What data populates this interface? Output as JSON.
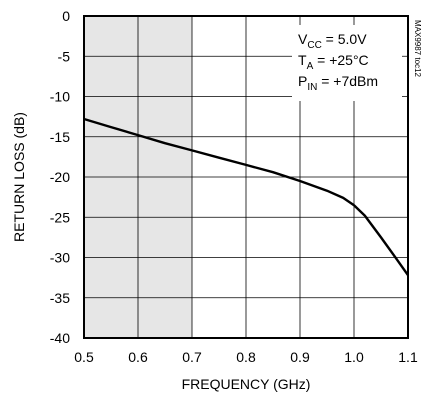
{
  "chart_data": {
    "type": "line",
    "title": "",
    "xlabel": "FREQUENCY (GHz)",
    "ylabel": "RETURN LOSS (dB)",
    "xlim": [
      0.5,
      1.1
    ],
    "ylim": [
      -40,
      0
    ],
    "x_ticks": [
      0.5,
      0.6,
      0.7,
      0.8,
      0.9,
      1.0,
      1.1
    ],
    "x_tick_labels": [
      "0.5",
      "0.6",
      "0.7",
      "0.8",
      "0.9",
      "1.0",
      "1.1"
    ],
    "y_ticks": [
      0,
      -5,
      -10,
      -15,
      -20,
      -25,
      -30,
      -35,
      -40
    ],
    "y_tick_labels": [
      "0",
      "-5",
      "-10",
      "-15",
      "-20",
      "-25",
      "-30",
      "-35",
      "-40"
    ],
    "grid": true,
    "shaded_region": {
      "x_from": 0.5,
      "x_to": 0.7,
      "color": "#e6e6e6"
    },
    "series": [
      {
        "color": "#000000",
        "x": [
          0.5,
          0.55,
          0.6,
          0.65,
          0.7,
          0.75,
          0.8,
          0.85,
          0.9,
          0.95,
          0.98,
          1.0,
          1.02,
          1.05,
          1.08,
          1.1
        ],
        "y": [
          -12.8,
          -13.8,
          -14.8,
          -15.8,
          -16.7,
          -17.6,
          -18.5,
          -19.4,
          -20.5,
          -21.7,
          -22.6,
          -23.5,
          -24.8,
          -27.5,
          -30.3,
          -32.2
        ]
      }
    ],
    "annotation": {
      "lines": [
        {
          "main": "V",
          "sub": "CC",
          "rest": " = 5.0V"
        },
        {
          "main": "T",
          "sub": "A",
          "rest": " = +25°C"
        },
        {
          "main": "P",
          "sub": "IN",
          "rest": " = +7dBm"
        }
      ]
    },
    "watermark": "MAX9987 toc12"
  }
}
